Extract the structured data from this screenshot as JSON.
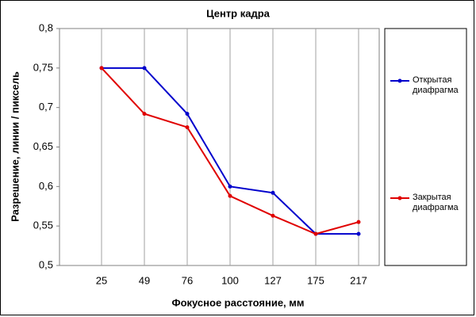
{
  "chart_data": {
    "type": "line",
    "title": "Центр кадра",
    "x_label": "Фокусное расстояние, мм",
    "y_label": "Разрешение, линии / пиксель",
    "categories": [
      "25",
      "49",
      "76",
      "100",
      "127",
      "175",
      "217"
    ],
    "series": [
      {
        "name": "Открытая диафрагма",
        "color": "#0000cc",
        "values": [
          0.75,
          0.75,
          0.692,
          0.6,
          0.592,
          0.54,
          0.54
        ]
      },
      {
        "name": "Закрытая диафрагма",
        "color": "#e00000",
        "values": [
          0.75,
          0.692,
          0.675,
          0.588,
          0.563,
          0.54,
          0.555
        ]
      }
    ],
    "ylim": [
      0.5,
      0.8
    ],
    "yticks": [
      {
        "value": 0.5,
        "label": "0,5"
      },
      {
        "value": 0.55,
        "label": "0,55"
      },
      {
        "value": 0.6,
        "label": "0,6"
      },
      {
        "value": 0.65,
        "label": "0,65"
      },
      {
        "value": 0.7,
        "label": "0,7"
      },
      {
        "value": 0.75,
        "label": "0,75"
      },
      {
        "value": 0.8,
        "label": "0,8"
      }
    ],
    "grid": "x",
    "legend": "right"
  }
}
